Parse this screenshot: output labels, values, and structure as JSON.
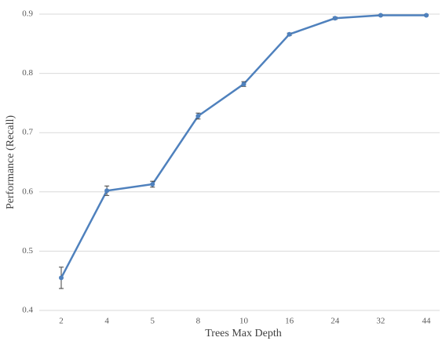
{
  "chart_data": {
    "type": "line",
    "x_label": "Trees Max Depth",
    "y_label": "Performance (Recall)",
    "categories": [
      "2",
      "4",
      "5",
      "8",
      "10",
      "16",
      "24",
      "32",
      "44"
    ],
    "series": [
      {
        "color": "#4f81bd",
        "values": [
          0.455,
          0.602,
          0.613,
          0.728,
          0.782,
          0.866,
          0.893,
          0.898,
          0.898
        ],
        "errors": [
          0.018,
          0.008,
          0.005,
          0.005,
          0.004,
          0.002,
          0.002,
          0.001,
          0.001
        ]
      }
    ],
    "ylim": [
      0.4,
      0.9
    ],
    "yticks": [
      0.4,
      0.5,
      0.6,
      0.7,
      0.8,
      0.9
    ],
    "grid": true
  }
}
